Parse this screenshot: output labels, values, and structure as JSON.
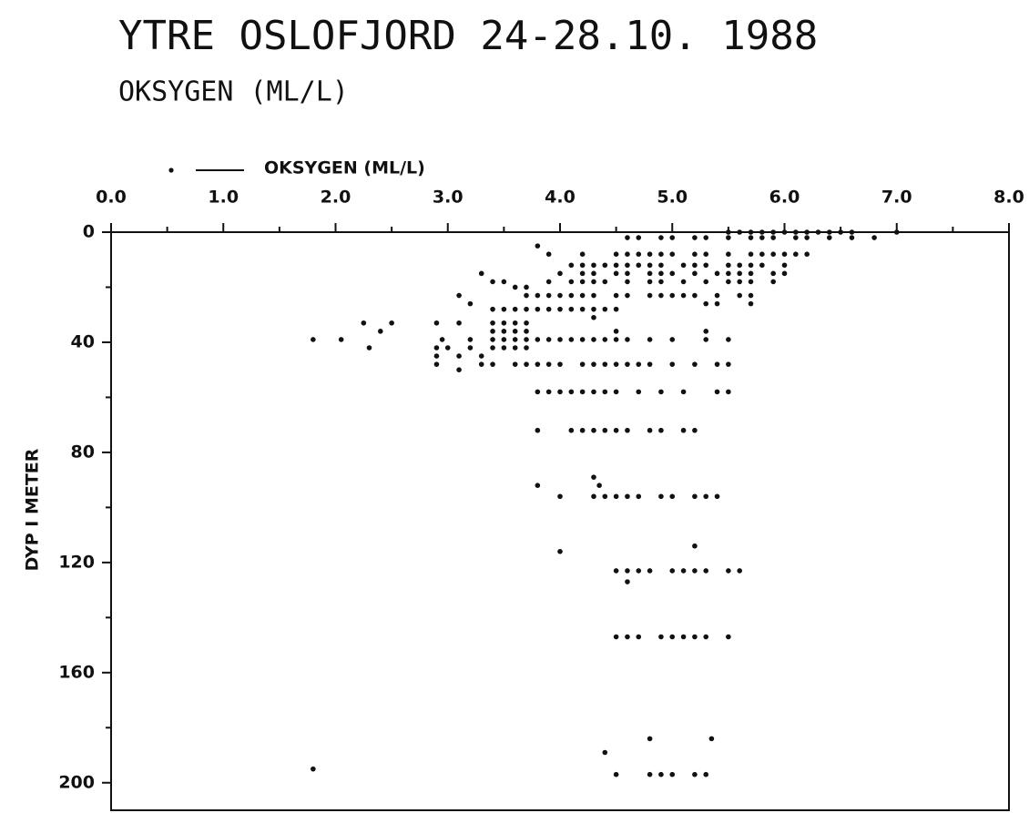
{
  "chart_data": {
    "type": "scatter",
    "title": "YTRE OSLOFJORD 24-28.10. 1988",
    "subtitle": "OKSYGEN (ML/L)",
    "ylabel": "DYP I METER",
    "legend": "top-left",
    "y_inverted": true,
    "xlim": [
      0,
      8
    ],
    "ylim": [
      0,
      210
    ],
    "xticks": [
      {
        "value": 0,
        "label": "0.0"
      },
      {
        "value": 1,
        "label": "1.0"
      },
      {
        "value": 2,
        "label": "2.0"
      },
      {
        "value": 3,
        "label": "3.0"
      },
      {
        "value": 4,
        "label": "4.0"
      },
      {
        "value": 5,
        "label": "5.0"
      },
      {
        "value": 6,
        "label": "6.0"
      },
      {
        "value": 7,
        "label": "7.0"
      },
      {
        "value": 8,
        "label": "8.0"
      }
    ],
    "yticks": [
      0,
      40,
      80,
      120,
      160,
      200
    ],
    "series": [
      {
        "name": "OKSYGEN (ML/L)",
        "color": "#111111",
        "x": [
          5.5,
          5.6,
          5.7,
          5.8,
          5.9,
          6.0,
          6.1,
          6.2,
          6.3,
          6.4,
          6.5,
          6.6,
          7.0,
          4.6,
          4.7,
          4.9,
          5.0,
          5.2,
          5.3,
          5.5,
          5.7,
          5.8,
          5.9,
          6.1,
          6.2,
          6.4,
          6.6,
          6.8,
          3.8,
          3.9,
          4.2,
          4.5,
          4.6,
          4.7,
          4.8,
          4.9,
          5.0,
          5.2,
          5.3,
          5.5,
          5.7,
          5.8,
          5.9,
          6.0,
          6.1,
          6.2,
          4.1,
          4.2,
          4.3,
          4.4,
          4.5,
          4.6,
          4.7,
          4.8,
          4.9,
          5.1,
          5.2,
          5.3,
          5.5,
          5.6,
          5.7,
          5.8,
          6.0,
          3.3,
          4.0,
          4.2,
          4.3,
          4.5,
          4.6,
          4.8,
          4.9,
          5.0,
          5.2,
          5.4,
          5.5,
          5.6,
          5.7,
          5.9,
          6.0,
          3.4,
          3.5,
          3.9,
          4.1,
          4.2,
          4.3,
          4.4,
          4.6,
          4.8,
          4.9,
          5.1,
          5.3,
          5.5,
          5.6,
          5.7,
          5.9,
          3.6,
          3.7,
          3.1,
          3.7,
          3.8,
          3.9,
          4.0,
          4.1,
          4.2,
          4.3,
          4.5,
          4.6,
          4.8,
          4.9,
          5.0,
          5.1,
          5.2,
          5.4,
          5.6,
          5.7,
          3.2,
          5.3,
          5.4,
          5.7,
          3.4,
          3.5,
          3.6,
          3.7,
          3.8,
          3.9,
          4.0,
          4.1,
          4.2,
          4.3,
          4.4,
          4.5,
          4.3,
          2.25,
          2.5,
          2.9,
          3.1,
          3.4,
          3.5,
          3.6,
          3.7,
          2.4,
          3.4,
          3.5,
          3.6,
          3.7,
          4.5,
          5.3,
          1.8,
          2.05,
          2.95,
          3.2,
          3.4,
          3.5,
          3.6,
          3.7,
          3.8,
          3.9,
          4.0,
          4.1,
          4.2,
          4.3,
          4.4,
          4.5,
          4.6,
          4.8,
          5.0,
          5.3,
          5.5,
          2.3,
          2.9,
          3.0,
          3.2,
          3.4,
          3.5,
          3.6,
          3.7,
          2.9,
          3.1,
          3.3,
          2.9,
          3.3,
          3.4,
          3.6,
          3.7,
          3.8,
          3.9,
          4.0,
          4.2,
          4.3,
          4.4,
          4.5,
          4.6,
          4.7,
          4.8,
          5.0,
          5.2,
          5.4,
          5.5,
          3.1,
          3.8,
          3.9,
          4.0,
          4.1,
          4.2,
          4.3,
          4.4,
          4.5,
          4.7,
          4.9,
          5.1,
          5.4,
          5.5,
          3.8,
          4.1,
          4.2,
          4.3,
          4.4,
          4.5,
          4.6,
          4.8,
          4.9,
          5.1,
          5.2,
          4.3,
          3.8,
          4.35,
          4.0,
          4.3,
          4.4,
          4.5,
          4.6,
          4.7,
          4.9,
          5.0,
          5.2,
          5.3,
          5.4,
          5.2,
          4.0,
          4.5,
          4.6,
          4.7,
          4.8,
          5.0,
          5.1,
          5.2,
          5.3,
          5.5,
          5.6,
          4.6,
          4.5,
          4.6,
          4.7,
          4.9,
          5.0,
          5.1,
          5.2,
          5.3,
          5.5,
          4.8,
          5.35,
          4.4,
          1.8,
          4.5,
          4.8,
          4.9,
          5.0,
          5.2,
          5.3
        ],
        "values": [
          0,
          0,
          0,
          0,
          0,
          0,
          0,
          0,
          0,
          0,
          0,
          0,
          0,
          2,
          2,
          2,
          2,
          2,
          2,
          2,
          2,
          2,
          2,
          2,
          2,
          2,
          2,
          2,
          5,
          8,
          8,
          8,
          8,
          8,
          8,
          8,
          8,
          8,
          8,
          8,
          8,
          8,
          8,
          8,
          8,
          8,
          12,
          12,
          12,
          12,
          12,
          12,
          12,
          12,
          12,
          12,
          12,
          12,
          12,
          12,
          12,
          12,
          12,
          15,
          15,
          15,
          15,
          15,
          15,
          15,
          15,
          15,
          15,
          15,
          15,
          15,
          15,
          15,
          15,
          18,
          18,
          18,
          18,
          18,
          18,
          18,
          18,
          18,
          18,
          18,
          18,
          18,
          18,
          18,
          18,
          20,
          20,
          23,
          23,
          23,
          23,
          23,
          23,
          23,
          23,
          23,
          23,
          23,
          23,
          23,
          23,
          23,
          23,
          23,
          23,
          26,
          26,
          26,
          26,
          28,
          28,
          28,
          28,
          28,
          28,
          28,
          28,
          28,
          28,
          28,
          28,
          31,
          33,
          33,
          33,
          33,
          33,
          33,
          33,
          33,
          36,
          36,
          36,
          36,
          36,
          36,
          36,
          39,
          39,
          39,
          39,
          39,
          39,
          39,
          39,
          39,
          39,
          39,
          39,
          39,
          39,
          39,
          39,
          39,
          39,
          39,
          39,
          39,
          42,
          42,
          42,
          42,
          42,
          42,
          42,
          42,
          45,
          45,
          45,
          48,
          48,
          48,
          48,
          48,
          48,
          48,
          48,
          48,
          48,
          48,
          48,
          48,
          48,
          48,
          48,
          48,
          48,
          48,
          50,
          58,
          58,
          58,
          58,
          58,
          58,
          58,
          58,
          58,
          58,
          58,
          58,
          58,
          72,
          72,
          72,
          72,
          72,
          72,
          72,
          72,
          72,
          72,
          72,
          89,
          92,
          92,
          96,
          96,
          96,
          96,
          96,
          96,
          96,
          96,
          96,
          96,
          96,
          114,
          116,
          123,
          123,
          123,
          123,
          123,
          123,
          123,
          123,
          123,
          123,
          127,
          147,
          147,
          147,
          147,
          147,
          147,
          147,
          147,
          147,
          184,
          184,
          189,
          195,
          197,
          197,
          197,
          197,
          197,
          197
        ]
      }
    ]
  }
}
